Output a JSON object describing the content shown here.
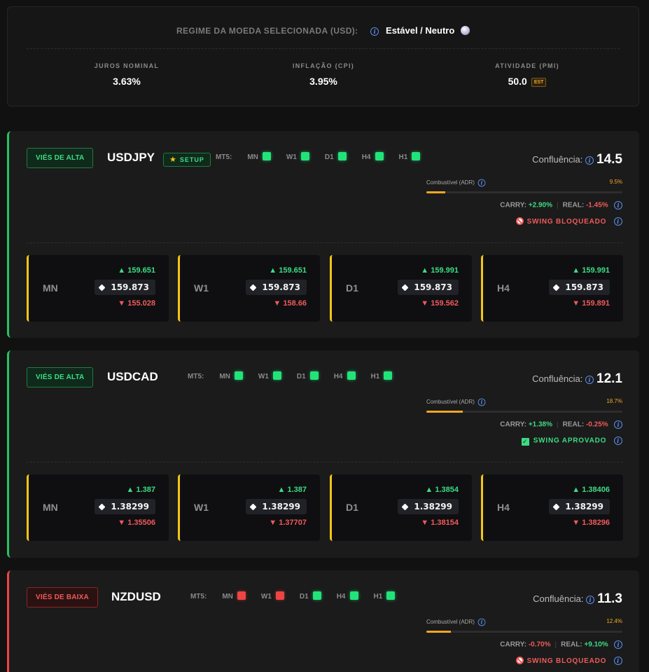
{
  "regime": {
    "label": "REGIME DA MOEDA SELECIONADA (USD):",
    "value": "Estável / Neutro",
    "stats": [
      {
        "label": "JUROS NOMINAL",
        "value": "3.63%"
      },
      {
        "label": "INFLAÇÃO (CPI)",
        "value": "3.95%"
      },
      {
        "label": "ATIVIDADE (PMI)",
        "value": "50.0",
        "badge": "EST"
      }
    ]
  },
  "common": {
    "mt5_label": "MT5:",
    "confluence_label": "Confluência:",
    "fuel_label": "Combustível (ADR)",
    "carry_label": "CARRY:",
    "real_label": "REAL:",
    "info_glyph": "i",
    "setup_label": "SETUP"
  },
  "colors": {
    "bull": "#22c55e",
    "bear": "#ef4444",
    "fuel": "#f5a623",
    "accent_info": "#5b8def"
  },
  "cards": [
    {
      "bias": "VIÉS DE ALTA",
      "pair": "USDJPY",
      "setup": true,
      "mt5": [
        {
          "tf": "MN",
          "state": "up"
        },
        {
          "tf": "W1",
          "state": "up"
        },
        {
          "tf": "D1",
          "state": "up"
        },
        {
          "tf": "H4",
          "state": "up"
        },
        {
          "tf": "H1",
          "state": "up"
        }
      ],
      "confluence": "14.5",
      "fuel_text": "9.5%",
      "fuel_fraction": 0.095,
      "carry": "+2.90%",
      "real": "-1.45%",
      "swing": "SWING BLOQUEADO",
      "swing_state": "blocked",
      "timeframes": [
        {
          "tf": "MN",
          "high": "▲ 159.651",
          "current": "159.873",
          "low": "▼ 155.028"
        },
        {
          "tf": "W1",
          "high": "▲ 159.651",
          "current": "159.873",
          "low": "▼ 158.66"
        },
        {
          "tf": "D1",
          "high": "▲ 159.991",
          "current": "159.873",
          "low": "▼ 159.562"
        },
        {
          "tf": "H4",
          "high": "▲ 159.991",
          "current": "159.873",
          "low": "▼ 159.891"
        }
      ]
    },
    {
      "bias": "VIÉS DE ALTA",
      "pair": "USDCAD",
      "setup": false,
      "mt5": [
        {
          "tf": "MN",
          "state": "up"
        },
        {
          "tf": "W1",
          "state": "up"
        },
        {
          "tf": "D1",
          "state": "up"
        },
        {
          "tf": "H4",
          "state": "up"
        },
        {
          "tf": "H1",
          "state": "up"
        }
      ],
      "confluence": "12.1",
      "fuel_text": "18.7%",
      "fuel_fraction": 0.187,
      "carry": "+1.38%",
      "real": "-0.25%",
      "swing": "SWING APROVADO",
      "swing_state": "approved",
      "timeframes": [
        {
          "tf": "MN",
          "high": "▲ 1.387",
          "current": "1.38299",
          "low": "▼ 1.35506"
        },
        {
          "tf": "W1",
          "high": "▲ 1.387",
          "current": "1.38299",
          "low": "▼ 1.37707"
        },
        {
          "tf": "D1",
          "high": "▲ 1.3854",
          "current": "1.38299",
          "low": "▼ 1.38154"
        },
        {
          "tf": "H4",
          "high": "▲ 1.38406",
          "current": "1.38299",
          "low": "▼ 1.38296"
        }
      ]
    },
    {
      "bias": "VIÉS DE BAIXA",
      "pair": "NZDUSD",
      "setup": false,
      "mt5": [
        {
          "tf": "MN",
          "state": "down"
        },
        {
          "tf": "W1",
          "state": "down"
        },
        {
          "tf": "D1",
          "state": "up"
        },
        {
          "tf": "H4",
          "state": "up"
        },
        {
          "tf": "H1",
          "state": "up"
        }
      ],
      "confluence": "11.3",
      "fuel_text": "12.4%",
      "fuel_fraction": 0.124,
      "carry": "-0.70%",
      "real": "+9.10%",
      "swing": "SWING BLOQUEADO",
      "swing_state": "blocked",
      "timeframes": []
    }
  ]
}
